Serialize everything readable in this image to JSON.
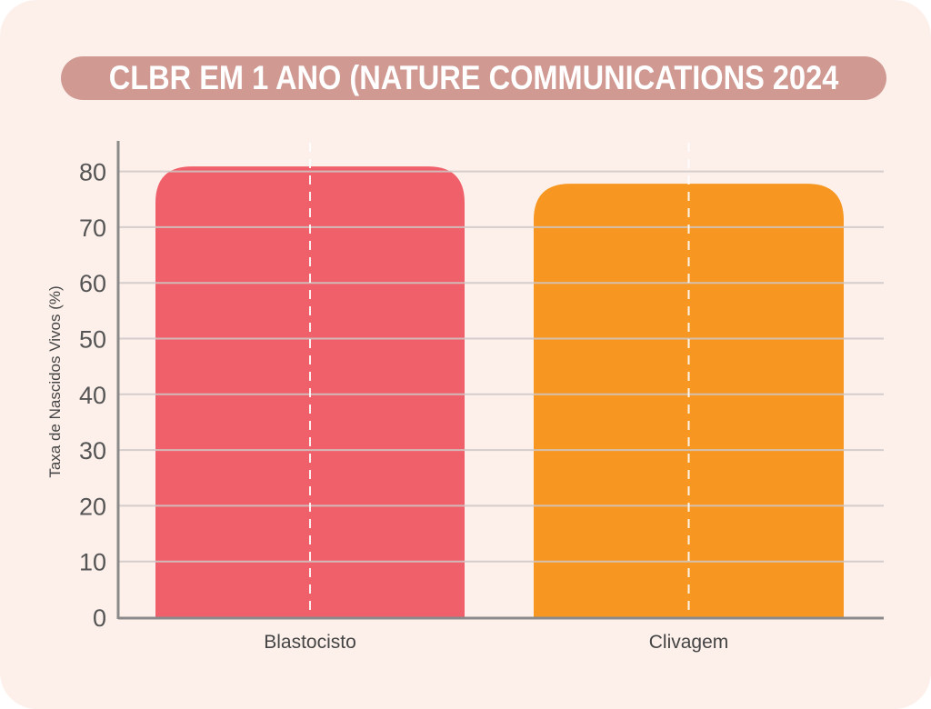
{
  "chart_data": {
    "type": "bar",
    "title": "CLBR EM 1 ANO (NATURE COMMUNICATIONS 2024",
    "xlabel": "",
    "ylabel": "Taxa de Nascidos Vivos (%)",
    "categories": [
      "Blastocisto",
      "Clivagem"
    ],
    "values": [
      80.9,
      77.8
    ],
    "colors": [
      "#f0606a",
      "#f79721"
    ],
    "ylim": [
      0,
      85
    ],
    "yticks": [
      0,
      10,
      20,
      30,
      40,
      50,
      60,
      70,
      80
    ],
    "grid": true,
    "legend": "none"
  }
}
